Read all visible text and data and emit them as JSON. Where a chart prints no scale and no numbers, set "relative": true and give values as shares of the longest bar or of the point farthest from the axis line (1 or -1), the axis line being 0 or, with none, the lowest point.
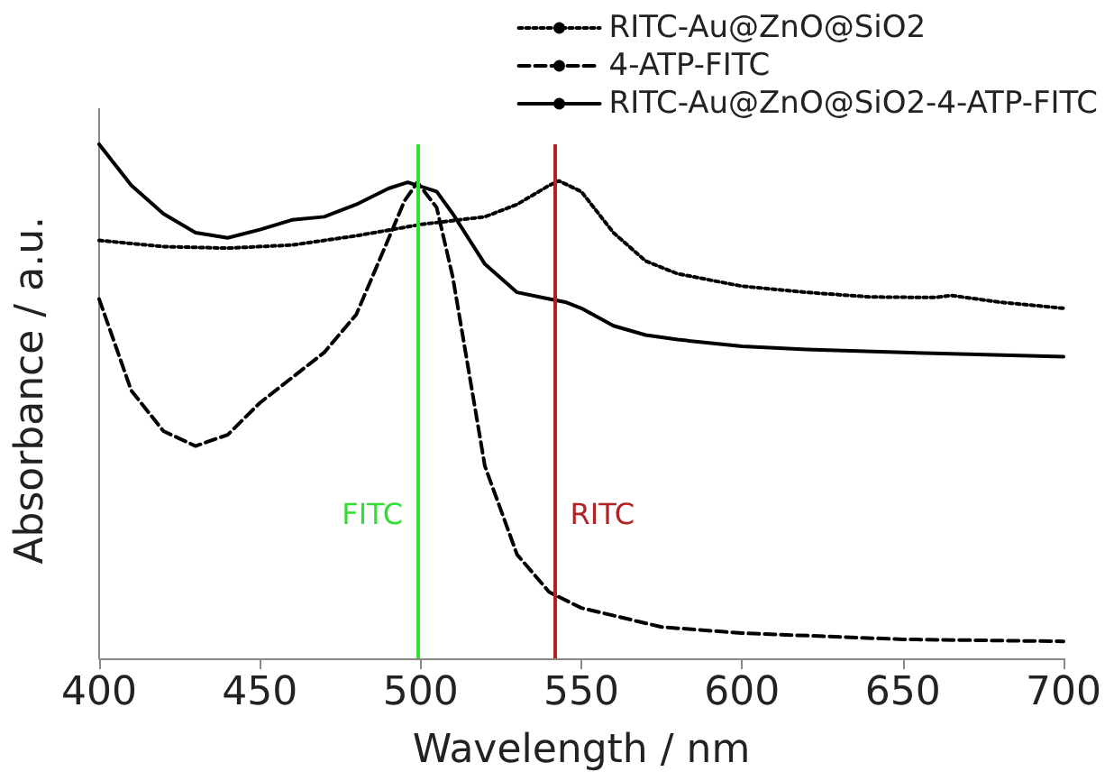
{
  "chart_data": {
    "type": "line",
    "xlabel": "Wavelength / nm",
    "ylabel": "Absorbance / a.u.",
    "relative": true,
    "xlim": [
      400,
      700
    ],
    "xticks": [
      400,
      450,
      500,
      550,
      600,
      650,
      700
    ],
    "grid": false,
    "legend": "top right",
    "marker": "none",
    "series": [
      {
        "name": "RITC-Au@ZnO@SiO2",
        "color": "#000000",
        "line_style": "dotted",
        "x": [
          400,
          420,
          440,
          460,
          480,
          500,
          520,
          530,
          540,
          543,
          550,
          560,
          570,
          580,
          600,
          620,
          640,
          660,
          665,
          680,
          700
        ],
        "values": [
          0.813,
          0.801,
          0.798,
          0.804,
          0.822,
          0.844,
          0.859,
          0.883,
          0.92,
          0.929,
          0.908,
          0.828,
          0.773,
          0.748,
          0.724,
          0.712,
          0.703,
          0.702,
          0.706,
          0.693,
          0.681
        ]
      },
      {
        "name": "4-ATP-FITC",
        "color": "#000000",
        "line_style": "dashed",
        "x": [
          400,
          410,
          420,
          430,
          440,
          450,
          460,
          470,
          480,
          490,
          495,
          499,
          505,
          510,
          515,
          520,
          530,
          540,
          550,
          575,
          600,
          650,
          700
        ],
        "values": [
          0.699,
          0.521,
          0.442,
          0.413,
          0.435,
          0.497,
          0.546,
          0.595,
          0.669,
          0.816,
          0.89,
          0.926,
          0.877,
          0.742,
          0.558,
          0.374,
          0.202,
          0.129,
          0.098,
          0.061,
          0.049,
          0.037,
          0.033
        ]
      },
      {
        "name": "RITC-Au@ZnO@SiO2-4-ATP-FITC",
        "color": "#000000",
        "line_style": "solid",
        "x": [
          400,
          410,
          420,
          430,
          440,
          450,
          460,
          470,
          480,
          490,
          496,
          505,
          510,
          520,
          530,
          540,
          545,
          550,
          560,
          570,
          580,
          600,
          620,
          650,
          700
        ],
        "values": [
          1.0,
          0.92,
          0.865,
          0.828,
          0.818,
          0.834,
          0.853,
          0.859,
          0.883,
          0.914,
          0.926,
          0.908,
          0.865,
          0.767,
          0.712,
          0.699,
          0.693,
          0.681,
          0.647,
          0.629,
          0.62,
          0.607,
          0.601,
          0.595,
          0.587
        ]
      }
    ],
    "ref_lines": [
      {
        "axis": "x",
        "value": 499,
        "label": "FITC",
        "color": "#33dd33"
      },
      {
        "axis": "x",
        "value": 542,
        "label": "RITC",
        "color": "#b22222"
      }
    ]
  }
}
